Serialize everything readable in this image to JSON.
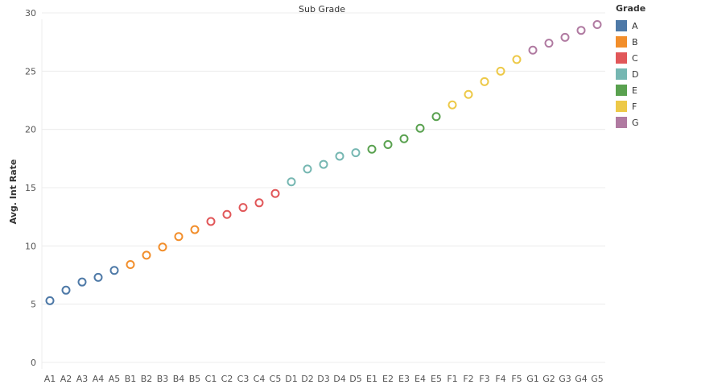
{
  "chart_data": {
    "type": "scatter",
    "title": "Sub Grade",
    "xlabel": "",
    "ylabel": "Avg. Int Rate",
    "ylim": [
      0,
      30
    ],
    "yticks": [
      0,
      5,
      10,
      15,
      20,
      25,
      30
    ],
    "grid": true,
    "legend_title": "Grade",
    "legend_position": "top-right",
    "categories": [
      "A1",
      "A2",
      "A3",
      "A4",
      "A5",
      "B1",
      "B2",
      "B3",
      "B4",
      "B5",
      "C1",
      "C2",
      "C3",
      "C4",
      "C5",
      "D1",
      "D2",
      "D3",
      "D4",
      "D5",
      "E1",
      "E2",
      "E3",
      "E4",
      "E5",
      "F1",
      "F2",
      "F3",
      "F4",
      "F5",
      "G1",
      "G2",
      "G3",
      "G4",
      "G5"
    ],
    "series": [
      {
        "name": "A",
        "color": "#4e79a7",
        "points": [
          {
            "x": "A1",
            "y": 5.3
          },
          {
            "x": "A2",
            "y": 6.2
          },
          {
            "x": "A3",
            "y": 6.9
          },
          {
            "x": "A4",
            "y": 7.3
          },
          {
            "x": "A5",
            "y": 7.9
          }
        ]
      },
      {
        "name": "B",
        "color": "#f28e2b",
        "points": [
          {
            "x": "B1",
            "y": 8.4
          },
          {
            "x": "B2",
            "y": 9.2
          },
          {
            "x": "B3",
            "y": 9.9
          },
          {
            "x": "B4",
            "y": 10.8
          },
          {
            "x": "B5",
            "y": 11.4
          }
        ]
      },
      {
        "name": "C",
        "color": "#e15759",
        "points": [
          {
            "x": "C1",
            "y": 12.1
          },
          {
            "x": "C2",
            "y": 12.7
          },
          {
            "x": "C3",
            "y": 13.3
          },
          {
            "x": "C4",
            "y": 13.7
          },
          {
            "x": "C5",
            "y": 14.5
          }
        ]
      },
      {
        "name": "D",
        "color": "#76b7b2",
        "points": [
          {
            "x": "D1",
            "y": 15.5
          },
          {
            "x": "D2",
            "y": 16.6
          },
          {
            "x": "D3",
            "y": 17.0
          },
          {
            "x": "D4",
            "y": 17.7
          },
          {
            "x": "D5",
            "y": 18.0
          }
        ]
      },
      {
        "name": "E",
        "color": "#59a14f",
        "points": [
          {
            "x": "E1",
            "y": 18.3
          },
          {
            "x": "E2",
            "y": 18.7
          },
          {
            "x": "E3",
            "y": 19.2
          },
          {
            "x": "E4",
            "y": 20.1
          },
          {
            "x": "E5",
            "y": 21.1
          }
        ]
      },
      {
        "name": "F",
        "color": "#edc948",
        "points": [
          {
            "x": "F1",
            "y": 22.1
          },
          {
            "x": "F2",
            "y": 23.0
          },
          {
            "x": "F3",
            "y": 24.1
          },
          {
            "x": "F4",
            "y": 25.0
          },
          {
            "x": "F5",
            "y": 26.0
          }
        ]
      },
      {
        "name": "G",
        "color": "#b07aa1",
        "points": [
          {
            "x": "G1",
            "y": 26.8
          },
          {
            "x": "G2",
            "y": 27.4
          },
          {
            "x": "G3",
            "y": 27.9
          },
          {
            "x": "G4",
            "y": 28.5
          },
          {
            "x": "G5",
            "y": 29.0
          }
        ]
      }
    ]
  }
}
